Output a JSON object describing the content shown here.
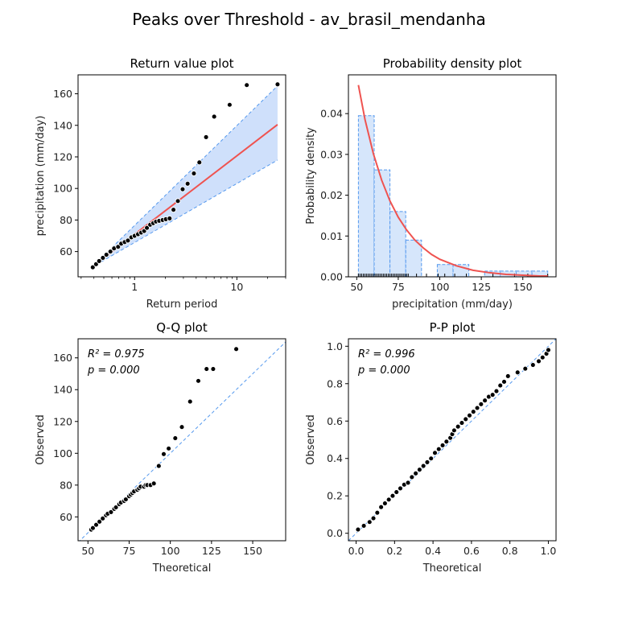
{
  "page": {
    "suptitle": "Peaks over Threshold - av_brasil_mendanha"
  },
  "colors": {
    "fit": "#ef5350",
    "ci": "#5599ee",
    "ci_fill": "#cfe0fb",
    "hist_fill": "#d6e6fb",
    "points": "#000000",
    "ref_line": "#5599ee"
  },
  "chart_data": [
    {
      "id": "return",
      "type": "scatter",
      "title": "Return value plot",
      "xlabel": "Return period",
      "ylabel": "precipitation (mm/day)",
      "xscale": "log",
      "xlim": [
        0.28,
        30
      ],
      "ylim": [
        44,
        172
      ],
      "xticks": [
        {
          "value": 1,
          "label": "1"
        },
        {
          "value": 10,
          "label": "10"
        }
      ],
      "yticks": [
        60,
        80,
        100,
        120,
        140,
        160
      ],
      "fit_line": {
        "x": [
          0.38,
          25
        ],
        "y": [
          50,
          140.5
        ]
      },
      "ci_upper": {
        "x": [
          0.38,
          25
        ],
        "y": [
          50,
          165
        ]
      },
      "ci_lower": {
        "x": [
          0.38,
          25
        ],
        "y": [
          50,
          118
        ]
      },
      "points": {
        "x": [
          0.39,
          0.42,
          0.45,
          0.49,
          0.53,
          0.58,
          0.63,
          0.69,
          0.74,
          0.8,
          0.86,
          0.93,
          1.0,
          1.08,
          1.16,
          1.24,
          1.32,
          1.42,
          1.52,
          1.62,
          1.74,
          1.88,
          2.02,
          2.2,
          2.4,
          2.65,
          2.95,
          3.3,
          3.8,
          4.3,
          5.0,
          6.0,
          8.5,
          12.5,
          25
        ],
        "y": [
          50,
          52,
          54,
          56,
          58,
          60,
          62,
          63,
          65,
          66,
          67,
          69,
          70,
          71,
          72,
          73,
          75,
          77,
          78,
          79,
          79.5,
          80,
          80.5,
          81,
          86.5,
          92,
          99.5,
          103,
          109.5,
          116.5,
          132.5,
          145.5,
          153,
          165.5,
          166
        ]
      }
    },
    {
      "id": "pdf",
      "type": "bar",
      "title": "Probability density plot",
      "xlabel": "precipitation (mm/day)",
      "ylabel": "Probability density",
      "xlim": [
        45,
        170
      ],
      "ylim": [
        0,
        0.0495
      ],
      "xticks": [
        50,
        75,
        100,
        125,
        150
      ],
      "yticks": [
        {
          "value": 0.0,
          "label": "0.00"
        },
        {
          "value": 0.01,
          "label": "0.01"
        },
        {
          "value": 0.02,
          "label": "0.02"
        },
        {
          "value": 0.03,
          "label": "0.03"
        },
        {
          "value": 0.04,
          "label": "0.04"
        }
      ],
      "bins": [
        {
          "x0": 51,
          "x1": 60.5,
          "density": 0.0395
        },
        {
          "x0": 60.5,
          "x1": 70,
          "density": 0.0262
        },
        {
          "x0": 70,
          "x1": 79.5,
          "density": 0.016
        },
        {
          "x0": 79.5,
          "x1": 89,
          "density": 0.009
        },
        {
          "x0": 89,
          "x1": 98.5,
          "density": 0.0
        },
        {
          "x0": 98.5,
          "x1": 108,
          "density": 0.003
        },
        {
          "x0": 108,
          "x1": 117.5,
          "density": 0.003
        },
        {
          "x0": 117.5,
          "x1": 127,
          "density": 0.0
        },
        {
          "x0": 127,
          "x1": 136.5,
          "density": 0.0014
        },
        {
          "x0": 136.5,
          "x1": 146,
          "density": 0.0014
        },
        {
          "x0": 146,
          "x1": 155.5,
          "density": 0.0014
        },
        {
          "x0": 155.5,
          "x1": 165,
          "density": 0.0014
        }
      ],
      "pdf_curve": {
        "x": [
          51,
          55,
          60,
          65,
          70,
          75,
          80,
          85,
          90,
          95,
          100,
          110,
          120,
          130,
          140,
          150,
          160,
          165
        ],
        "y": [
          0.047,
          0.0385,
          0.0302,
          0.0237,
          0.0186,
          0.0146,
          0.0115,
          0.009,
          0.0071,
          0.0055,
          0.0043,
          0.0027,
          0.0016,
          0.001,
          0.0006,
          0.0004,
          0.0002,
          0.0002
        ]
      },
      "rug": [
        51,
        52,
        53,
        54,
        55,
        56,
        57,
        58,
        59,
        60,
        61,
        62,
        63,
        64,
        65,
        66,
        67,
        68,
        69,
        70,
        71,
        72,
        73,
        74,
        75,
        76,
        77,
        78,
        79,
        80,
        81,
        86,
        92,
        99,
        103,
        109,
        116,
        132,
        145,
        153,
        165
      ]
    },
    {
      "id": "qq",
      "type": "scatter",
      "title": "Q-Q plot",
      "xlabel": "Theoretical",
      "ylabel": "Observed",
      "xlim": [
        44,
        170
      ],
      "ylim": [
        45,
        172
      ],
      "xticks": [
        50,
        75,
        100,
        125,
        150
      ],
      "yticks": [
        60,
        80,
        100,
        120,
        140,
        160
      ],
      "ref_line": {
        "x": [
          44,
          170
        ],
        "y": [
          44,
          170
        ]
      },
      "annotations": [
        {
          "text": "R² = 0.975",
          "row": 0
        },
        {
          "text": "p = 0.000",
          "row": 1
        }
      ],
      "points": {
        "x": [
          52,
          53,
          55,
          57,
          59,
          61,
          62,
          64,
          66,
          67,
          69,
          70,
          72,
          73,
          75,
          76,
          77,
          78,
          80,
          81,
          82,
          84,
          85,
          86,
          88,
          90,
          93,
          96,
          99,
          103,
          107,
          112,
          117,
          122,
          126,
          140
        ],
        "y": [
          52,
          53,
          55,
          57,
          59,
          61,
          62,
          63,
          65,
          66,
          68,
          69,
          70,
          71,
          73,
          74,
          75,
          76,
          77,
          78,
          79,
          79,
          80,
          80,
          80,
          81,
          92,
          99.5,
          103,
          109.5,
          116.5,
          132.5,
          145.5,
          153,
          153,
          165.5
        ]
      }
    },
    {
      "id": "pp",
      "type": "scatter",
      "title": "P-P plot",
      "xlabel": "Theoretical",
      "ylabel": "Observed",
      "xlim": [
        -0.04,
        1.04
      ],
      "ylim": [
        -0.04,
        1.04
      ],
      "xticks": [
        {
          "value": 0.0,
          "label": "0.0"
        },
        {
          "value": 0.2,
          "label": "0.2"
        },
        {
          "value": 0.4,
          "label": "0.4"
        },
        {
          "value": 0.6,
          "label": "0.6"
        },
        {
          "value": 0.8,
          "label": "0.8"
        },
        {
          "value": 1.0,
          "label": "1.0"
        }
      ],
      "yticks": [
        {
          "value": 0.0,
          "label": "0.0"
        },
        {
          "value": 0.2,
          "label": "0.2"
        },
        {
          "value": 0.4,
          "label": "0.4"
        },
        {
          "value": 0.6,
          "label": "0.6"
        },
        {
          "value": 0.8,
          "label": "0.8"
        },
        {
          "value": 1.0,
          "label": "1.0"
        }
      ],
      "ref_line": {
        "x": [
          -0.04,
          1.04
        ],
        "y": [
          -0.04,
          1.04
        ]
      },
      "annotations": [
        {
          "text": "R² = 0.996",
          "row": 0
        },
        {
          "text": "p = 0.000",
          "row": 1
        }
      ],
      "points": {
        "x": [
          0.01,
          0.04,
          0.07,
          0.09,
          0.11,
          0.13,
          0.15,
          0.17,
          0.19,
          0.21,
          0.23,
          0.25,
          0.27,
          0.29,
          0.31,
          0.33,
          0.35,
          0.37,
          0.39,
          0.41,
          0.43,
          0.45,
          0.47,
          0.49,
          0.5,
          0.51,
          0.53,
          0.55,
          0.57,
          0.59,
          0.61,
          0.63,
          0.65,
          0.67,
          0.69,
          0.71,
          0.73,
          0.75,
          0.77,
          0.79,
          0.84,
          0.88,
          0.92,
          0.95,
          0.97,
          0.99,
          1.0
        ],
        "y": [
          0.02,
          0.04,
          0.06,
          0.08,
          0.11,
          0.14,
          0.16,
          0.18,
          0.2,
          0.22,
          0.24,
          0.26,
          0.27,
          0.3,
          0.32,
          0.34,
          0.36,
          0.38,
          0.4,
          0.43,
          0.45,
          0.47,
          0.49,
          0.51,
          0.53,
          0.55,
          0.57,
          0.59,
          0.61,
          0.63,
          0.65,
          0.67,
          0.69,
          0.71,
          0.73,
          0.74,
          0.76,
          0.79,
          0.81,
          0.84,
          0.86,
          0.88,
          0.9,
          0.92,
          0.94,
          0.96,
          0.98
        ]
      }
    }
  ]
}
